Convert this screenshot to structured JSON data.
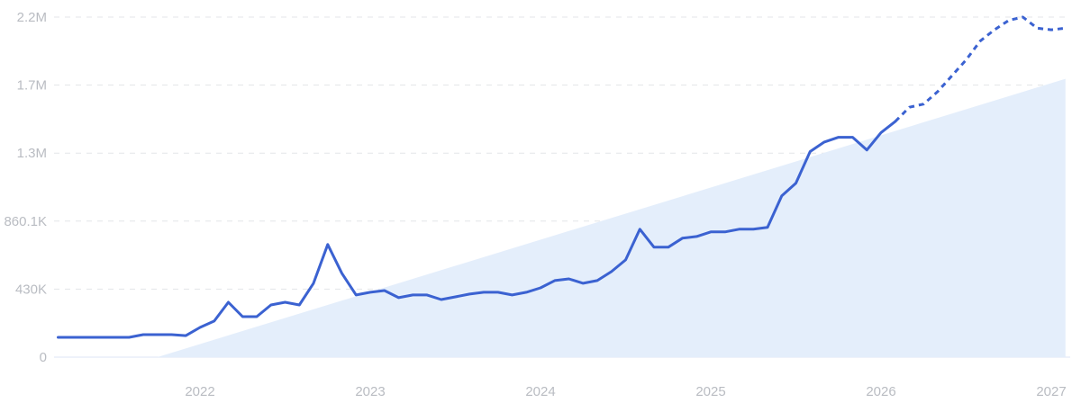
{
  "chart_data": {
    "type": "line",
    "title": "",
    "xlabel": "",
    "ylabel": "",
    "ylim": [
      0,
      2150250
    ],
    "xlim": [
      "2021-03",
      "2027-02"
    ],
    "grid": true,
    "y_ticks": [
      {
        "value": 0,
        "label": "0"
      },
      {
        "value": 430050,
        "label": "430K"
      },
      {
        "value": 860100,
        "label": "860.1K"
      },
      {
        "value": 1290150,
        "label": "1.3M"
      },
      {
        "value": 1720200,
        "label": "1.7M"
      },
      {
        "value": 2150250,
        "label": "2.2M"
      }
    ],
    "x_ticks": [
      "2022",
      "2023",
      "2024",
      "2025",
      "2026",
      "2027"
    ],
    "colors": {
      "line": "#3b62d1",
      "trend_area": "#e4eefb",
      "grid": "#e3e5e8",
      "tick_text": "#b9bcc2"
    },
    "series": [
      {
        "style": "solid",
        "x": [
          "2021-03",
          "2021-04",
          "2021-05",
          "2021-06",
          "2021-07",
          "2021-08",
          "2021-09",
          "2021-10",
          "2021-11",
          "2021-12",
          "2022-01",
          "2022-02",
          "2022-03",
          "2022-04",
          "2022-05",
          "2022-06",
          "2022-07",
          "2022-08",
          "2022-09",
          "2022-10",
          "2022-11",
          "2022-12",
          "2023-01",
          "2023-02",
          "2023-03",
          "2023-04",
          "2023-05",
          "2023-06",
          "2023-07",
          "2023-08",
          "2023-09",
          "2023-10",
          "2023-11",
          "2023-12",
          "2024-01",
          "2024-02",
          "2024-03",
          "2024-04",
          "2024-05",
          "2024-06",
          "2024-07",
          "2024-08",
          "2024-09",
          "2024-10",
          "2024-11",
          "2024-12",
          "2025-01",
          "2025-02",
          "2025-03",
          "2025-04",
          "2025-05",
          "2025-06",
          "2025-07",
          "2025-08",
          "2025-09",
          "2025-10",
          "2025-11",
          "2025-12",
          "2026-01",
          "2026-02"
        ],
        "values": [
          125000,
          125000,
          125000,
          125000,
          125000,
          125000,
          142000,
          142000,
          142000,
          136000,
          188000,
          228000,
          347000,
          256000,
          256000,
          330000,
          347000,
          330000,
          467000,
          712000,
          530000,
          393000,
          410000,
          421000,
          376000,
          393000,
          393000,
          364000,
          381000,
          399000,
          410000,
          410000,
          393000,
          410000,
          438000,
          484000,
          495000,
          467000,
          484000,
          541000,
          615000,
          809000,
          695000,
          695000,
          752000,
          763000,
          792000,
          792000,
          809000,
          809000,
          820000,
          1020000,
          1100000,
          1300000,
          1360000,
          1390000,
          1390000,
          1310000,
          1420000,
          1490000
        ]
      },
      {
        "style": "dashed",
        "x": [
          "2026-02",
          "2026-03",
          "2026-04",
          "2026-05",
          "2026-06",
          "2026-07",
          "2026-08",
          "2026-09",
          "2026-10",
          "2026-11",
          "2026-12",
          "2027-01",
          "2027-02"
        ],
        "values": [
          1490000,
          1580000,
          1600000,
          1680000,
          1780000,
          1880000,
          2000000,
          2070000,
          2130000,
          2150000,
          2080000,
          2070000,
          2080000
        ]
      }
    ],
    "trend_area": {
      "x": [
        "2021-10",
        "2027-02"
      ],
      "values": [
        0,
        1760000
      ]
    }
  }
}
